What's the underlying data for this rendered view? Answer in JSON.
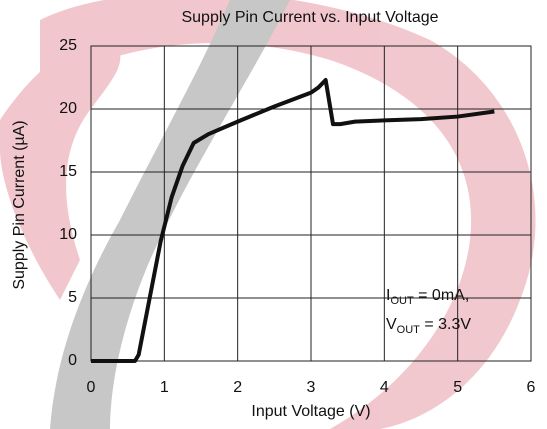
{
  "chart_data": {
    "type": "line",
    "title": "Supply Pin Current vs. Input Voltage",
    "x_label": "Input Voltage (V)",
    "y_label": "Supply Pin Current (µA)",
    "x": [
      0,
      0.6,
      0.65,
      0.8,
      0.95,
      1.1,
      1.25,
      1.4,
      1.6,
      2,
      2.5,
      3,
      3.1,
      3.2,
      3.3,
      3.4,
      3.6,
      4,
      4.5,
      5,
      5.5
    ],
    "series": [
      {
        "color": "#111111",
        "values": [
          0,
          0,
          0.5,
          5,
          9.5,
          13,
          15.5,
          17.3,
          18,
          19,
          20.2,
          21.3,
          21.7,
          22.3,
          18.8,
          18.8,
          19,
          19.1,
          19.2,
          19.4,
          19.8
        ]
      }
    ],
    "xlim": [
      0,
      6
    ],
    "xticks": [
      0,
      1,
      2,
      3,
      4,
      5,
      6
    ],
    "ylim": [
      0,
      25
    ],
    "yticks": [
      0,
      5,
      10,
      15,
      20,
      25
    ],
    "grid": true,
    "annotations": [
      {
        "main": "I",
        "sub": "OUT",
        "rest": " = 0mA,"
      },
      {
        "main": "V",
        "sub": "OUT",
        "rest": " = 3.3V"
      }
    ]
  }
}
